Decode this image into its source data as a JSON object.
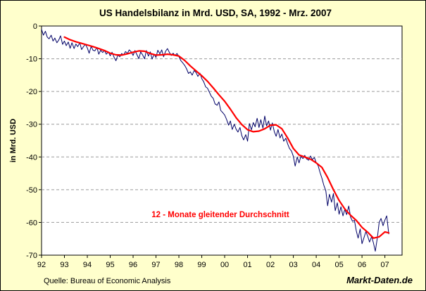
{
  "chart_data": {
    "type": "line",
    "title": "US Handelsbilanz in Mrd. USD, SA, 1992 - Mrz. 2007",
    "ylabel": "in Mrd. USD",
    "xlabel": "",
    "ylim": [
      -70,
      0
    ],
    "xlim": [
      1992,
      2007.75
    ],
    "y_ticks": [
      0,
      -10,
      -20,
      -30,
      -40,
      -50,
      -60,
      -70
    ],
    "x_ticks": [
      {
        "label": "92",
        "x": 1992
      },
      {
        "label": "93",
        "x": 1993
      },
      {
        "label": "94",
        "x": 1994
      },
      {
        "label": "95",
        "x": 1995
      },
      {
        "label": "96",
        "x": 1996
      },
      {
        "label": "97",
        "x": 1997
      },
      {
        "label": "98",
        "x": 1998
      },
      {
        "label": "99",
        "x": 1999
      },
      {
        "label": "00",
        "x": 2000
      },
      {
        "label": "01",
        "x": 2001
      },
      {
        "label": "02",
        "x": 2002
      },
      {
        "label": "03",
        "x": 2003
      },
      {
        "label": "04",
        "x": 2004
      },
      {
        "label": "05",
        "x": 2005
      },
      {
        "label": "06",
        "x": 2006
      },
      {
        "label": "07",
        "x": 2007
      }
    ],
    "grid": "horizontal dashed",
    "annotation": "12 - Monate gleitender Durchschnitt",
    "series": [
      {
        "color": "#000066",
        "points": [
          [
            1992.0,
            -1.0
          ],
          [
            1992.08,
            -2.8
          ],
          [
            1992.17,
            -1.6
          ],
          [
            1992.25,
            -3.4
          ],
          [
            1992.33,
            -3.9
          ],
          [
            1992.42,
            -2.8
          ],
          [
            1992.5,
            -4.6
          ],
          [
            1992.58,
            -3.7
          ],
          [
            1992.67,
            -5.1
          ],
          [
            1992.75,
            -4.3
          ],
          [
            1992.83,
            -3.0
          ],
          [
            1992.92,
            -5.6
          ],
          [
            1993.0,
            -4.6
          ],
          [
            1993.08,
            -6.0
          ],
          [
            1993.17,
            -4.9
          ],
          [
            1993.25,
            -6.8
          ],
          [
            1993.33,
            -5.1
          ],
          [
            1993.42,
            -6.9
          ],
          [
            1993.5,
            -5.5
          ],
          [
            1993.58,
            -6.3
          ],
          [
            1993.67,
            -5.1
          ],
          [
            1993.75,
            -7.2
          ],
          [
            1993.83,
            -6.3
          ],
          [
            1993.92,
            -5.6
          ],
          [
            1994.0,
            -6.7
          ],
          [
            1994.08,
            -8.3
          ],
          [
            1994.17,
            -6.2
          ],
          [
            1994.25,
            -7.4
          ],
          [
            1994.33,
            -7.6
          ],
          [
            1994.42,
            -6.6
          ],
          [
            1994.5,
            -8.6
          ],
          [
            1994.58,
            -7.4
          ],
          [
            1994.67,
            -8.1
          ],
          [
            1994.75,
            -7.5
          ],
          [
            1994.83,
            -8.6
          ],
          [
            1994.92,
            -7.9
          ],
          [
            1995.0,
            -9.1
          ],
          [
            1995.08,
            -8.0
          ],
          [
            1995.17,
            -9.6
          ],
          [
            1995.25,
            -10.6
          ],
          [
            1995.33,
            -8.9
          ],
          [
            1995.42,
            -9.4
          ],
          [
            1995.5,
            -8.4
          ],
          [
            1995.58,
            -8.9
          ],
          [
            1995.67,
            -7.8
          ],
          [
            1995.75,
            -8.4
          ],
          [
            1995.83,
            -7.3
          ],
          [
            1995.92,
            -7.9
          ],
          [
            1996.0,
            -9.0
          ],
          [
            1996.08,
            -7.5
          ],
          [
            1996.17,
            -8.8
          ],
          [
            1996.25,
            -10.0
          ],
          [
            1996.33,
            -7.9
          ],
          [
            1996.42,
            -8.9
          ],
          [
            1996.5,
            -10.0
          ],
          [
            1996.58,
            -7.5
          ],
          [
            1996.67,
            -9.2
          ],
          [
            1996.75,
            -7.9
          ],
          [
            1996.83,
            -10.1
          ],
          [
            1996.92,
            -8.6
          ],
          [
            1997.0,
            -9.6
          ],
          [
            1997.08,
            -7.4
          ],
          [
            1997.17,
            -8.5
          ],
          [
            1997.25,
            -7.3
          ],
          [
            1997.33,
            -9.4
          ],
          [
            1997.42,
            -7.7
          ],
          [
            1997.5,
            -6.9
          ],
          [
            1997.58,
            -8.0
          ],
          [
            1997.67,
            -9.0
          ],
          [
            1997.75,
            -8.3
          ],
          [
            1997.83,
            -9.0
          ],
          [
            1997.92,
            -8.4
          ],
          [
            1998.0,
            -9.3
          ],
          [
            1998.08,
            -10.5
          ],
          [
            1998.17,
            -11.3
          ],
          [
            1998.25,
            -12.0
          ],
          [
            1998.33,
            -13.0
          ],
          [
            1998.42,
            -14.5
          ],
          [
            1998.5,
            -14.0
          ],
          [
            1998.58,
            -15.0
          ],
          [
            1998.67,
            -13.6
          ],
          [
            1998.75,
            -14.2
          ],
          [
            1998.83,
            -15.4
          ],
          [
            1998.92,
            -14.4
          ],
          [
            1999.0,
            -16.1
          ],
          [
            1999.08,
            -17.0
          ],
          [
            1999.17,
            -18.6
          ],
          [
            1999.25,
            -19.0
          ],
          [
            1999.33,
            -20.2
          ],
          [
            1999.42,
            -21.5
          ],
          [
            1999.5,
            -22.1
          ],
          [
            1999.58,
            -23.8
          ],
          [
            1999.67,
            -24.2
          ],
          [
            1999.75,
            -23.2
          ],
          [
            1999.83,
            -25.8
          ],
          [
            1999.92,
            -26.5
          ],
          [
            2000.0,
            -27.2
          ],
          [
            2000.08,
            -28.5
          ],
          [
            2000.17,
            -30.3
          ],
          [
            2000.25,
            -29.0
          ],
          [
            2000.33,
            -31.6
          ],
          [
            2000.42,
            -30.0
          ],
          [
            2000.5,
            -31.5
          ],
          [
            2000.58,
            -32.4
          ],
          [
            2000.67,
            -31.0
          ],
          [
            2000.75,
            -33.5
          ],
          [
            2000.83,
            -34.8
          ],
          [
            2000.92,
            -33.2
          ],
          [
            2001.0,
            -35.2
          ],
          [
            2001.08,
            -29.8
          ],
          [
            2001.17,
            -31.7
          ],
          [
            2001.25,
            -29.5
          ],
          [
            2001.33,
            -30.8
          ],
          [
            2001.42,
            -28.2
          ],
          [
            2001.5,
            -31.0
          ],
          [
            2001.58,
            -28.6
          ],
          [
            2001.67,
            -31.2
          ],
          [
            2001.75,
            -27.5
          ],
          [
            2001.83,
            -30.5
          ],
          [
            2001.92,
            -29.0
          ],
          [
            2002.0,
            -31.8
          ],
          [
            2002.08,
            -29.6
          ],
          [
            2002.17,
            -32.3
          ],
          [
            2002.25,
            -33.7
          ],
          [
            2002.33,
            -31.6
          ],
          [
            2002.42,
            -34.2
          ],
          [
            2002.5,
            -33.0
          ],
          [
            2002.58,
            -35.2
          ],
          [
            2002.67,
            -34.3
          ],
          [
            2002.75,
            -36.0
          ],
          [
            2002.83,
            -37.4
          ],
          [
            2002.92,
            -38.2
          ],
          [
            2003.0,
            -39.8
          ],
          [
            2003.08,
            -42.8
          ],
          [
            2003.17,
            -40.0
          ],
          [
            2003.25,
            -41.8
          ],
          [
            2003.33,
            -39.8
          ],
          [
            2003.42,
            -40.5
          ],
          [
            2003.5,
            -39.5
          ],
          [
            2003.58,
            -40.6
          ],
          [
            2003.67,
            -41.0
          ],
          [
            2003.75,
            -39.7
          ],
          [
            2003.83,
            -40.8
          ],
          [
            2003.92,
            -40.2
          ],
          [
            2004.0,
            -41.8
          ],
          [
            2004.08,
            -42.6
          ],
          [
            2004.17,
            -44.8
          ],
          [
            2004.25,
            -46.5
          ],
          [
            2004.33,
            -48.6
          ],
          [
            2004.42,
            -50.3
          ],
          [
            2004.5,
            -54.9
          ],
          [
            2004.58,
            -51.4
          ],
          [
            2004.67,
            -53.8
          ],
          [
            2004.75,
            -51.2
          ],
          [
            2004.83,
            -56.4
          ],
          [
            2004.92,
            -54.0
          ],
          [
            2005.0,
            -57.5
          ],
          [
            2005.08,
            -55.2
          ],
          [
            2005.17,
            -58.0
          ],
          [
            2005.25,
            -56.0
          ],
          [
            2005.33,
            -57.6
          ],
          [
            2005.42,
            -55.0
          ],
          [
            2005.5,
            -58.4
          ],
          [
            2005.58,
            -59.6
          ],
          [
            2005.67,
            -59.4
          ],
          [
            2005.75,
            -62.6
          ],
          [
            2005.83,
            -64.8
          ],
          [
            2005.92,
            -62.0
          ],
          [
            2006.0,
            -66.5
          ],
          [
            2006.08,
            -64.8
          ],
          [
            2006.17,
            -62.8
          ],
          [
            2006.25,
            -64.2
          ],
          [
            2006.33,
            -66.0
          ],
          [
            2006.42,
            -64.3
          ],
          [
            2006.5,
            -66.3
          ],
          [
            2006.58,
            -68.8
          ],
          [
            2006.67,
            -64.7
          ],
          [
            2006.75,
            -60.0
          ],
          [
            2006.83,
            -58.8
          ],
          [
            2006.92,
            -61.0
          ],
          [
            2007.0,
            -59.3
          ],
          [
            2007.08,
            -58.0
          ],
          [
            2007.17,
            -63.5
          ]
        ]
      },
      {
        "color": "#ff0000",
        "points": [
          [
            1993.0,
            -3.4
          ],
          [
            1993.25,
            -4.2
          ],
          [
            1993.5,
            -4.8
          ],
          [
            1993.75,
            -5.3
          ],
          [
            1994.0,
            -5.8
          ],
          [
            1994.25,
            -6.3
          ],
          [
            1994.5,
            -6.9
          ],
          [
            1994.75,
            -7.5
          ],
          [
            1995.0,
            -8.3
          ],
          [
            1995.25,
            -8.8
          ],
          [
            1995.5,
            -8.9
          ],
          [
            1995.75,
            -8.5
          ],
          [
            1996.0,
            -8.0
          ],
          [
            1996.25,
            -7.6
          ],
          [
            1996.5,
            -7.7
          ],
          [
            1996.75,
            -8.4
          ],
          [
            1997.0,
            -8.9
          ],
          [
            1997.25,
            -8.8
          ],
          [
            1997.5,
            -8.6
          ],
          [
            1997.75,
            -8.8
          ],
          [
            1998.0,
            -9.2
          ],
          [
            1998.25,
            -10.5
          ],
          [
            1998.5,
            -12.2
          ],
          [
            1998.75,
            -13.7
          ],
          [
            1999.0,
            -15.2
          ],
          [
            1999.25,
            -16.9
          ],
          [
            1999.5,
            -18.9
          ],
          [
            1999.75,
            -21.0
          ],
          [
            2000.0,
            -23.0
          ],
          [
            2000.25,
            -25.4
          ],
          [
            2000.5,
            -28.0
          ],
          [
            2000.75,
            -30.1
          ],
          [
            2001.0,
            -31.7
          ],
          [
            2001.25,
            -32.3
          ],
          [
            2001.5,
            -32.1
          ],
          [
            2001.75,
            -31.4
          ],
          [
            2002.0,
            -30.3
          ],
          [
            2002.25,
            -30.2
          ],
          [
            2002.5,
            -31.4
          ],
          [
            2002.75,
            -34.2
          ],
          [
            2003.0,
            -37.4
          ],
          [
            2003.25,
            -39.4
          ],
          [
            2003.5,
            -40.0
          ],
          [
            2003.75,
            -40.7
          ],
          [
            2004.0,
            -41.8
          ],
          [
            2004.25,
            -43.2
          ],
          [
            2004.5,
            -46.3
          ],
          [
            2004.75,
            -50.0
          ],
          [
            2005.0,
            -53.3
          ],
          [
            2005.25,
            -55.9
          ],
          [
            2005.5,
            -57.8
          ],
          [
            2005.75,
            -59.4
          ],
          [
            2006.0,
            -61.5
          ],
          [
            2006.25,
            -63.0
          ],
          [
            2006.5,
            -64.8
          ],
          [
            2006.75,
            -64.4
          ],
          [
            2007.0,
            -62.9
          ],
          [
            2007.17,
            -63.2
          ]
        ]
      }
    ]
  },
  "footer": {
    "source": "Quelle: Bureau of Economic Analysis",
    "brand": "Markt-Daten.de"
  }
}
